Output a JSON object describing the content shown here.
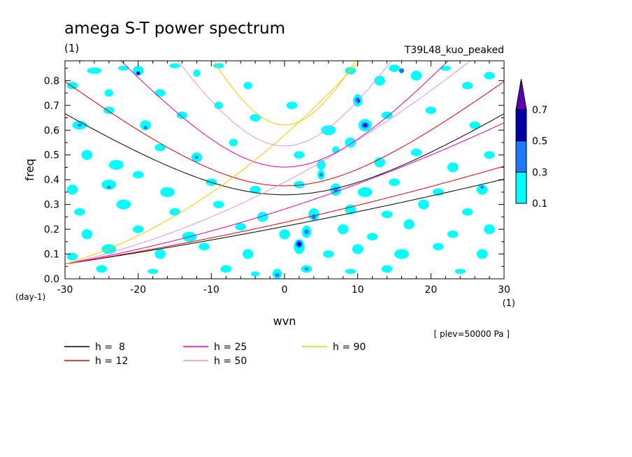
{
  "chart_data": {
    "type": "heatmap",
    "title": "amega S-T power spectrum",
    "title_units": "(1)",
    "subtitle_right": "T39L48_kuo_peaked",
    "xlabel": "wvn",
    "x_units": "(1)",
    "ylabel": "freq",
    "y_units": "(day-1)",
    "xlim": [
      -30,
      30
    ],
    "ylim": [
      0,
      0.88
    ],
    "x_ticks": [
      -30,
      -20,
      -10,
      0,
      10,
      20,
      30
    ],
    "x_tick_labels": [
      "-30",
      "-20",
      "-10",
      "0",
      "10",
      "20",
      "30"
    ],
    "y_ticks": [
      0,
      0.1,
      0.2,
      0.3,
      0.4,
      0.5,
      0.6,
      0.7,
      0.8
    ],
    "y_tick_labels": [
      "0.0",
      "0.1",
      "0.2",
      "0.3",
      "0.4",
      "0.5",
      "0.6",
      "0.7",
      "0.8"
    ],
    "plev_note": "[ plev=50000 Pa ]",
    "colorbar": {
      "levels": [
        0.1,
        0.3,
        0.5,
        0.7
      ],
      "level_labels": [
        "0.1",
        "0.3",
        "0.5",
        "0.7"
      ],
      "colors": [
        "#00ffff",
        "#1e78ff",
        "#0000aa",
        "#5a00b4"
      ]
    },
    "dispersion_curves": [
      {
        "label": "h =  8",
        "h": 8,
        "color": "#000000"
      },
      {
        "label": "h = 12",
        "h": 12,
        "color": "#e00000"
      },
      {
        "label": "h = 25",
        "h": 25,
        "color": "#e000b0"
      },
      {
        "label": "h = 50",
        "h": 50,
        "color": "#dc96dc"
      },
      {
        "label": "h = 90",
        "h": 90,
        "color": "#f0c800"
      }
    ],
    "blobs": [
      {
        "x": -29,
        "y": 0.78,
        "w": 1.5,
        "h": 0.03,
        "lvl": 0
      },
      {
        "x": -26,
        "y": 0.84,
        "w": 2.0,
        "h": 0.025,
        "lvl": 0
      },
      {
        "x": -24,
        "y": 0.75,
        "w": 1.2,
        "h": 0.03,
        "lvl": 0
      },
      {
        "x": -22,
        "y": 0.85,
        "w": 1.5,
        "h": 0.02,
        "lvl": 0
      },
      {
        "x": -20,
        "y": 0.84,
        "w": 1.5,
        "h": 0.04,
        "lvl": 0
      },
      {
        "x": -20,
        "y": 0.83,
        "w": 0.5,
        "h": 0.015,
        "lvl": 2
      },
      {
        "x": -17,
        "y": 0.75,
        "w": 1.5,
        "h": 0.03,
        "lvl": 0
      },
      {
        "x": -15,
        "y": 0.86,
        "w": 1.5,
        "h": 0.02,
        "lvl": 0
      },
      {
        "x": -12,
        "y": 0.83,
        "w": 1.0,
        "h": 0.03,
        "lvl": 0
      },
      {
        "x": -9,
        "y": 0.86,
        "w": 1.5,
        "h": 0.02,
        "lvl": 0
      },
      {
        "x": -5,
        "y": 0.78,
        "w": 1.2,
        "h": 0.03,
        "lvl": 0
      },
      {
        "x": 9,
        "y": 0.84,
        "w": 1.5,
        "h": 0.03,
        "lvl": 0
      },
      {
        "x": 13,
        "y": 0.8,
        "w": 1.5,
        "h": 0.04,
        "lvl": 0
      },
      {
        "x": 15,
        "y": 0.85,
        "w": 1.5,
        "h": 0.03,
        "lvl": 0
      },
      {
        "x": 16,
        "y": 0.84,
        "w": 0.7,
        "h": 0.02,
        "lvl": 1
      },
      {
        "x": 18,
        "y": 0.82,
        "w": 1.5,
        "h": 0.04,
        "lvl": 0
      },
      {
        "x": 22,
        "y": 0.85,
        "w": 1.5,
        "h": 0.02,
        "lvl": 0
      },
      {
        "x": 25,
        "y": 0.78,
        "w": 1.5,
        "h": 0.03,
        "lvl": 0
      },
      {
        "x": 28,
        "y": 0.82,
        "w": 1.5,
        "h": 0.03,
        "lvl": 0
      },
      {
        "x": 10,
        "y": 0.72,
        "w": 1.3,
        "h": 0.05,
        "lvl": 0
      },
      {
        "x": 10,
        "y": 0.72,
        "w": 0.7,
        "h": 0.025,
        "lvl": 1
      },
      {
        "x": 10.1,
        "y": 0.72,
        "w": 0.35,
        "h": 0.012,
        "lvl": 2
      },
      {
        "x": -28,
        "y": 0.62,
        "w": 2.0,
        "h": 0.035,
        "lvl": 0
      },
      {
        "x": -28,
        "y": 0.62,
        "w": 0.6,
        "h": 0.012,
        "lvl": 1
      },
      {
        "x": -24,
        "y": 0.68,
        "w": 1.5,
        "h": 0.03,
        "lvl": 0
      },
      {
        "x": -19,
        "y": 0.62,
        "w": 1.5,
        "h": 0.04,
        "lvl": 0
      },
      {
        "x": -19,
        "y": 0.61,
        "w": 0.5,
        "h": 0.015,
        "lvl": 1
      },
      {
        "x": -14,
        "y": 0.66,
        "w": 1.5,
        "h": 0.03,
        "lvl": 0
      },
      {
        "x": -9,
        "y": 0.7,
        "w": 1.2,
        "h": 0.03,
        "lvl": 0
      },
      {
        "x": -4,
        "y": 0.65,
        "w": 1.5,
        "h": 0.03,
        "lvl": 0
      },
      {
        "x": 1,
        "y": 0.7,
        "w": 1.5,
        "h": 0.03,
        "lvl": 0
      },
      {
        "x": 6,
        "y": 0.6,
        "w": 2.0,
        "h": 0.04,
        "lvl": 0
      },
      {
        "x": 11,
        "y": 0.62,
        "w": 1.8,
        "h": 0.05,
        "lvl": 0
      },
      {
        "x": 11,
        "y": 0.62,
        "w": 1.0,
        "h": 0.025,
        "lvl": 1
      },
      {
        "x": 11,
        "y": 0.62,
        "w": 0.5,
        "h": 0.012,
        "lvl": 2
      },
      {
        "x": 14,
        "y": 0.66,
        "w": 1.5,
        "h": 0.03,
        "lvl": 0
      },
      {
        "x": 20,
        "y": 0.68,
        "w": 1.5,
        "h": 0.03,
        "lvl": 0
      },
      {
        "x": 26,
        "y": 0.62,
        "w": 1.5,
        "h": 0.03,
        "lvl": 0
      },
      {
        "x": 9,
        "y": 0.55,
        "w": 1.5,
        "h": 0.04,
        "lvl": 0
      },
      {
        "x": 7,
        "y": 0.52,
        "w": 1.0,
        "h": 0.03,
        "lvl": 0
      },
      {
        "x": -27,
        "y": 0.5,
        "w": 1.5,
        "h": 0.04,
        "lvl": 0
      },
      {
        "x": -23,
        "y": 0.46,
        "w": 2.0,
        "h": 0.04,
        "lvl": 0
      },
      {
        "x": -17,
        "y": 0.53,
        "w": 1.5,
        "h": 0.03,
        "lvl": 0
      },
      {
        "x": -12,
        "y": 0.49,
        "w": 1.5,
        "h": 0.04,
        "lvl": 0
      },
      {
        "x": -12,
        "y": 0.49,
        "w": 0.5,
        "h": 0.012,
        "lvl": 1
      },
      {
        "x": -7,
        "y": 0.55,
        "w": 1.2,
        "h": 0.03,
        "lvl": 0
      },
      {
        "x": 2,
        "y": 0.5,
        "w": 1.5,
        "h": 0.03,
        "lvl": 0
      },
      {
        "x": 5,
        "y": 0.46,
        "w": 1.2,
        "h": 0.04,
        "lvl": 0
      },
      {
        "x": 13,
        "y": 0.47,
        "w": 1.5,
        "h": 0.04,
        "lvl": 0
      },
      {
        "x": 18,
        "y": 0.51,
        "w": 1.5,
        "h": 0.03,
        "lvl": 0
      },
      {
        "x": 23,
        "y": 0.45,
        "w": 1.5,
        "h": 0.04,
        "lvl": 0
      },
      {
        "x": 28,
        "y": 0.5,
        "w": 1.5,
        "h": 0.03,
        "lvl": 0
      },
      {
        "x": -29,
        "y": 0.36,
        "w": 1.5,
        "h": 0.04,
        "lvl": 0
      },
      {
        "x": -24,
        "y": 0.38,
        "w": 2.0,
        "h": 0.04,
        "lvl": 0
      },
      {
        "x": -24,
        "y": 0.37,
        "w": 0.5,
        "h": 0.012,
        "lvl": 1
      },
      {
        "x": -20,
        "y": 0.42,
        "w": 1.5,
        "h": 0.03,
        "lvl": 0
      },
      {
        "x": -16,
        "y": 0.35,
        "w": 2.0,
        "h": 0.04,
        "lvl": 0
      },
      {
        "x": -10,
        "y": 0.39,
        "w": 1.5,
        "h": 0.03,
        "lvl": 0
      },
      {
        "x": -4,
        "y": 0.36,
        "w": 1.5,
        "h": 0.03,
        "lvl": 0
      },
      {
        "x": 2,
        "y": 0.38,
        "w": 1.5,
        "h": 0.03,
        "lvl": 0
      },
      {
        "x": 5,
        "y": 0.42,
        "w": 1.0,
        "h": 0.04,
        "lvl": 0
      },
      {
        "x": 5,
        "y": 0.42,
        "w": 0.5,
        "h": 0.015,
        "lvl": 1
      },
      {
        "x": 7,
        "y": 0.36,
        "w": 1.5,
        "h": 0.05,
        "lvl": 0
      },
      {
        "x": 7,
        "y": 0.36,
        "w": 0.7,
        "h": 0.02,
        "lvl": 1
      },
      {
        "x": 11,
        "y": 0.35,
        "w": 2.0,
        "h": 0.04,
        "lvl": 0
      },
      {
        "x": 15,
        "y": 0.39,
        "w": 1.5,
        "h": 0.03,
        "lvl": 0
      },
      {
        "x": 21,
        "y": 0.35,
        "w": 1.5,
        "h": 0.03,
        "lvl": 0
      },
      {
        "x": 27,
        "y": 0.36,
        "w": 1.5,
        "h": 0.04,
        "lvl": 0
      },
      {
        "x": 27,
        "y": 0.37,
        "w": 0.5,
        "h": 0.012,
        "lvl": 1
      },
      {
        "x": -28,
        "y": 0.27,
        "w": 1.5,
        "h": 0.03,
        "lvl": 0
      },
      {
        "x": -22,
        "y": 0.3,
        "w": 2.0,
        "h": 0.04,
        "lvl": 0
      },
      {
        "x": -15,
        "y": 0.27,
        "w": 1.5,
        "h": 0.03,
        "lvl": 0
      },
      {
        "x": -9,
        "y": 0.3,
        "w": 1.5,
        "h": 0.03,
        "lvl": 0
      },
      {
        "x": -3,
        "y": 0.25,
        "w": 1.5,
        "h": 0.04,
        "lvl": 0
      },
      {
        "x": 4,
        "y": 0.26,
        "w": 1.5,
        "h": 0.05,
        "lvl": 0
      },
      {
        "x": 4,
        "y": 0.25,
        "w": 0.6,
        "h": 0.02,
        "lvl": 1
      },
      {
        "x": 9,
        "y": 0.28,
        "w": 1.5,
        "h": 0.04,
        "lvl": 0
      },
      {
        "x": 14,
        "y": 0.26,
        "w": 1.5,
        "h": 0.03,
        "lvl": 0
      },
      {
        "x": 19,
        "y": 0.3,
        "w": 1.5,
        "h": 0.04,
        "lvl": 0
      },
      {
        "x": 25,
        "y": 0.27,
        "w": 1.5,
        "h": 0.03,
        "lvl": 0
      },
      {
        "x": -27,
        "y": 0.18,
        "w": 1.5,
        "h": 0.04,
        "lvl": 0
      },
      {
        "x": -20,
        "y": 0.2,
        "w": 1.5,
        "h": 0.03,
        "lvl": 0
      },
      {
        "x": -13,
        "y": 0.17,
        "w": 2.0,
        "h": 0.04,
        "lvl": 0
      },
      {
        "x": -6,
        "y": 0.21,
        "w": 1.5,
        "h": 0.03,
        "lvl": 0
      },
      {
        "x": 0,
        "y": 0.18,
        "w": 1.5,
        "h": 0.04,
        "lvl": 0
      },
      {
        "x": 3,
        "y": 0.19,
        "w": 1.3,
        "h": 0.05,
        "lvl": 0
      },
      {
        "x": 3,
        "y": 0.19,
        "w": 0.6,
        "h": 0.02,
        "lvl": 1
      },
      {
        "x": 8,
        "y": 0.2,
        "w": 1.5,
        "h": 0.04,
        "lvl": 0
      },
      {
        "x": 12,
        "y": 0.17,
        "w": 1.5,
        "h": 0.03,
        "lvl": 0
      },
      {
        "x": 17,
        "y": 0.22,
        "w": 1.5,
        "h": 0.04,
        "lvl": 0
      },
      {
        "x": 23,
        "y": 0.18,
        "w": 1.5,
        "h": 0.03,
        "lvl": 0
      },
      {
        "x": 28,
        "y": 0.2,
        "w": 1.5,
        "h": 0.04,
        "lvl": 0
      },
      {
        "x": -29,
        "y": 0.09,
        "w": 1.5,
        "h": 0.03,
        "lvl": 0
      },
      {
        "x": -24,
        "y": 0.12,
        "w": 2.0,
        "h": 0.04,
        "lvl": 0
      },
      {
        "x": -17,
        "y": 0.1,
        "w": 1.5,
        "h": 0.04,
        "lvl": 0
      },
      {
        "x": -11,
        "y": 0.13,
        "w": 1.5,
        "h": 0.03,
        "lvl": 0
      },
      {
        "x": -5,
        "y": 0.1,
        "w": 1.5,
        "h": 0.04,
        "lvl": 0
      },
      {
        "x": 2,
        "y": 0.13,
        "w": 1.5,
        "h": 0.06,
        "lvl": 0
      },
      {
        "x": 2,
        "y": 0.14,
        "w": 0.9,
        "h": 0.03,
        "lvl": 1
      },
      {
        "x": 2,
        "y": 0.14,
        "w": 0.5,
        "h": 0.015,
        "lvl": 2
      },
      {
        "x": 6,
        "y": 0.1,
        "w": 1.5,
        "h": 0.03,
        "lvl": 0
      },
      {
        "x": 10,
        "y": 0.12,
        "w": 1.5,
        "h": 0.04,
        "lvl": 0
      },
      {
        "x": 16,
        "y": 0.1,
        "w": 2.0,
        "h": 0.04,
        "lvl": 0
      },
      {
        "x": 21,
        "y": 0.13,
        "w": 1.5,
        "h": 0.03,
        "lvl": 0
      },
      {
        "x": 27,
        "y": 0.1,
        "w": 1.5,
        "h": 0.04,
        "lvl": 0
      },
      {
        "x": -25,
        "y": 0.04,
        "w": 1.5,
        "h": 0.03,
        "lvl": 0
      },
      {
        "x": -18,
        "y": 0.03,
        "w": 1.5,
        "h": 0.02,
        "lvl": 0
      },
      {
        "x": -8,
        "y": 0.04,
        "w": 1.5,
        "h": 0.03,
        "lvl": 0
      },
      {
        "x": -4,
        "y": 0.02,
        "w": 1.2,
        "h": 0.02,
        "lvl": 0
      },
      {
        "x": -1,
        "y": 0.02,
        "w": 1.3,
        "h": 0.04,
        "lvl": 0
      },
      {
        "x": -1,
        "y": 0.015,
        "w": 0.6,
        "h": 0.015,
        "lvl": 1
      },
      {
        "x": 3,
        "y": 0.04,
        "w": 1.5,
        "h": 0.03,
        "lvl": 0
      },
      {
        "x": 3,
        "y": 0.04,
        "w": 0.5,
        "h": 0.012,
        "lvl": 1
      },
      {
        "x": 9,
        "y": 0.03,
        "w": 1.5,
        "h": 0.02,
        "lvl": 0
      },
      {
        "x": 14,
        "y": 0.04,
        "w": 1.5,
        "h": 0.03,
        "lvl": 0
      },
      {
        "x": 24,
        "y": 0.03,
        "w": 1.5,
        "h": 0.02,
        "lvl": 0
      }
    ]
  }
}
